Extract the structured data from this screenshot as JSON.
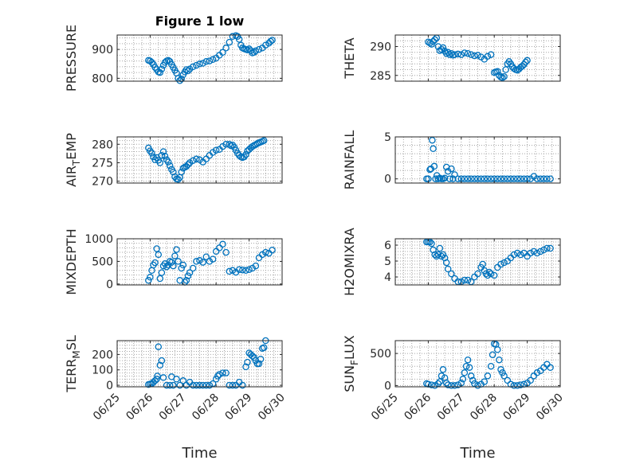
{
  "colors": {
    "marker": "#0072bd",
    "axis": "#262626",
    "grid": "#a6a6a6"
  },
  "chart_data": [
    {
      "id": "pressure",
      "type": "scatter",
      "title": "Figure 1 low",
      "ylabel": "PRESSURE",
      "ylim": [
        790,
        950
      ],
      "yticks": [
        800,
        900
      ],
      "yticklabels": [
        "800",
        "900"
      ],
      "xlim": [
        0,
        5
      ],
      "grid": true,
      "x": [
        0.95,
        1.0,
        1.05,
        1.1,
        1.15,
        1.2,
        1.25,
        1.3,
        1.35,
        1.4,
        1.45,
        1.5,
        1.55,
        1.6,
        1.65,
        1.7,
        1.75,
        1.8,
        1.85,
        1.9,
        1.95,
        2.0,
        2.05,
        2.1,
        2.15,
        2.2,
        2.3,
        2.4,
        2.5,
        2.6,
        2.7,
        2.8,
        2.9,
        3.0,
        3.1,
        3.2,
        3.3,
        3.4,
        3.5,
        3.6,
        3.65,
        3.7,
        3.75,
        3.8,
        3.85,
        3.9,
        3.95,
        4.0,
        4.05,
        4.1,
        4.15,
        4.2,
        4.3,
        4.4,
        4.5,
        4.6,
        4.65,
        4.7
      ],
      "y": [
        862,
        860,
        855,
        848,
        838,
        830,
        822,
        820,
        832,
        845,
        855,
        860,
        862,
        858,
        848,
        838,
        828,
        818,
        800,
        792,
        798,
        812,
        822,
        830,
        826,
        832,
        840,
        845,
        850,
        852,
        858,
        860,
        865,
        870,
        880,
        890,
        905,
        925,
        945,
        948,
        945,
        935,
        915,
        905,
        902,
        900,
        898,
        902,
        896,
        888,
        890,
        895,
        900,
        905,
        915,
        922,
        928,
        932
      ]
    },
    {
      "id": "theta",
      "type": "scatter",
      "title": "",
      "ylabel": "THETA",
      "ylim": [
        284,
        292
      ],
      "yticks": [
        285,
        290
      ],
      "yticklabels": [
        "285",
        "290"
      ],
      "xlim": [
        0,
        5
      ],
      "grid": true,
      "x": [
        1.0,
        1.05,
        1.1,
        1.15,
        1.2,
        1.25,
        1.3,
        1.35,
        1.4,
        1.45,
        1.5,
        1.55,
        1.6,
        1.65,
        1.7,
        1.75,
        1.8,
        1.9,
        2.0,
        2.1,
        2.2,
        2.3,
        2.4,
        2.5,
        2.6,
        2.7,
        2.8,
        2.9,
        3.0,
        3.05,
        3.1,
        3.15,
        3.2,
        3.25,
        3.3,
        3.35,
        3.4,
        3.45,
        3.5,
        3.55,
        3.6,
        3.65,
        3.7,
        3.75,
        3.8,
        3.85,
        3.9,
        3.95,
        4.0
      ],
      "y": [
        290.8,
        290.6,
        290.4,
        290.9,
        291.2,
        291.5,
        290.0,
        289.3,
        289.5,
        289.8,
        289.2,
        288.8,
        289.0,
        288.6,
        288.8,
        288.5,
        288.6,
        288.7,
        288.6,
        288.9,
        288.8,
        288.6,
        288.4,
        288.5,
        288.2,
        287.8,
        288.3,
        288.6,
        285.5,
        285.6,
        285.7,
        285.0,
        284.7,
        284.6,
        284.8,
        286.0,
        287.0,
        287.4,
        287.0,
        286.5,
        286.2,
        286.0,
        285.9,
        286.1,
        286.4,
        286.6,
        286.9,
        287.3,
        287.6
      ]
    },
    {
      "id": "airtemp",
      "type": "scatter",
      "title": "",
      "ylabel": "AIR_TEMP",
      "ylim": [
        269.5,
        282
      ],
      "yticks": [
        270,
        275,
        280
      ],
      "yticklabels": [
        "270",
        "275",
        "280"
      ],
      "xlim": [
        0,
        5
      ],
      "grid": true,
      "x": [
        0.95,
        1.0,
        1.05,
        1.1,
        1.15,
        1.2,
        1.25,
        1.3,
        1.35,
        1.4,
        1.45,
        1.5,
        1.55,
        1.6,
        1.65,
        1.7,
        1.75,
        1.8,
        1.85,
        1.9,
        1.95,
        2.0,
        2.05,
        2.1,
        2.15,
        2.2,
        2.3,
        2.4,
        2.5,
        2.6,
        2.7,
        2.8,
        2.9,
        3.0,
        3.1,
        3.2,
        3.3,
        3.4,
        3.45,
        3.5,
        3.55,
        3.6,
        3.65,
        3.7,
        3.75,
        3.8,
        3.85,
        3.9,
        3.95,
        4.0,
        4.05,
        4.1,
        4.15,
        4.2,
        4.25,
        4.3,
        4.35,
        4.4,
        4.45
      ],
      "y": [
        279.0,
        278.2,
        277.6,
        276.6,
        275.8,
        276.4,
        275.7,
        275.0,
        277.0,
        278.0,
        276.8,
        275.8,
        275.2,
        274.2,
        273.2,
        272.5,
        271.2,
        270.6,
        270.5,
        271.0,
        272.5,
        273.5,
        273.8,
        274.0,
        274.5,
        275.0,
        275.6,
        276.0,
        275.8,
        275.2,
        276.0,
        277.0,
        277.8,
        278.4,
        278.6,
        279.4,
        280.0,
        280.0,
        279.6,
        279.8,
        279.2,
        278.4,
        277.6,
        277.0,
        276.6,
        276.4,
        276.6,
        277.2,
        278.2,
        278.6,
        279.0,
        279.4,
        279.7,
        279.9,
        280.2,
        280.4,
        280.6,
        280.8,
        281.0
      ]
    },
    {
      "id": "rainfall",
      "type": "scatter",
      "title": "",
      "ylabel": "RAINFALL",
      "ylim": [
        -0.5,
        5
      ],
      "yticks": [
        0,
        5
      ],
      "yticklabels": [
        "0",
        "5"
      ],
      "xlim": [
        0,
        5
      ],
      "grid": true,
      "x": [
        0.95,
        1.0,
        1.05,
        1.08,
        1.12,
        1.15,
        1.18,
        1.22,
        1.26,
        1.3,
        1.35,
        1.4,
        1.45,
        1.5,
        1.55,
        1.6,
        1.65,
        1.7,
        1.75,
        1.8,
        1.9,
        2.0,
        2.1,
        2.2,
        2.3,
        2.4,
        2.5,
        2.6,
        2.7,
        2.8,
        2.9,
        3.0,
        3.1,
        3.2,
        3.3,
        3.4,
        3.5,
        3.6,
        3.7,
        3.8,
        3.9,
        4.0,
        4.1,
        4.2,
        4.3,
        4.4,
        4.5,
        4.6,
        4.7
      ],
      "y": [
        0,
        0,
        1.1,
        1.2,
        4.6,
        3.6,
        1.5,
        0,
        0.4,
        0,
        0.1,
        0,
        0,
        0.1,
        1.4,
        0.9,
        0,
        1.2,
        0,
        0.5,
        0,
        0,
        0,
        0,
        0,
        0,
        0,
        0,
        0,
        0,
        0,
        0,
        0,
        0,
        0,
        0,
        0,
        0,
        0,
        0,
        0,
        0,
        0,
        0.3,
        0,
        0,
        0,
        0,
        0
      ]
    },
    {
      "id": "mixdepth",
      "type": "scatter",
      "title": "",
      "ylabel": "MIXDEPTH",
      "ylim": [
        -20,
        1000
      ],
      "yticks": [
        0,
        500,
        1000
      ],
      "yticklabels": [
        "0",
        "500",
        "1000"
      ],
      "xlim": [
        0,
        5
      ],
      "grid": true,
      "x": [
        0.95,
        1.0,
        1.05,
        1.1,
        1.15,
        1.2,
        1.25,
        1.3,
        1.35,
        1.4,
        1.45,
        1.5,
        1.55,
        1.6,
        1.65,
        1.7,
        1.75,
        1.8,
        1.85,
        1.9,
        1.95,
        2.0,
        2.05,
        2.1,
        2.15,
        2.2,
        2.3,
        2.4,
        2.5,
        2.6,
        2.7,
        2.8,
        2.9,
        3.0,
        3.1,
        3.2,
        3.3,
        3.4,
        3.5,
        3.6,
        3.7,
        3.8,
        3.9,
        4.0,
        4.1,
        4.2,
        4.3,
        4.4,
        4.5,
        4.6,
        4.7
      ],
      "y": [
        80,
        150,
        300,
        420,
        470,
        780,
        650,
        120,
        250,
        400,
        450,
        380,
        420,
        500,
        480,
        400,
        620,
        760,
        500,
        80,
        350,
        420,
        40,
        80,
        180,
        250,
        350,
        500,
        520,
        480,
        600,
        500,
        550,
        720,
        800,
        880,
        700,
        280,
        300,
        260,
        320,
        310,
        300,
        320,
        350,
        400,
        580,
        650,
        700,
        680,
        750
      ]
    },
    {
      "id": "h2omixra",
      "type": "scatter",
      "title": "",
      "ylabel": "H2OMIXRA",
      "ylim": [
        3.5,
        6.4
      ],
      "yticks": [
        4,
        5,
        6
      ],
      "yticklabels": [
        "4",
        "5",
        "6"
      ],
      "xlim": [
        0,
        5
      ],
      "grid": true,
      "x": [
        0.95,
        1.0,
        1.05,
        1.1,
        1.15,
        1.2,
        1.25,
        1.3,
        1.35,
        1.4,
        1.45,
        1.5,
        1.55,
        1.6,
        1.7,
        1.8,
        1.9,
        2.0,
        2.1,
        2.2,
        2.3,
        2.4,
        2.5,
        2.6,
        2.65,
        2.7,
        2.75,
        2.8,
        2.85,
        2.9,
        3.0,
        3.1,
        3.2,
        3.3,
        3.4,
        3.5,
        3.6,
        3.7,
        3.8,
        3.9,
        4.0,
        4.1,
        4.2,
        4.3,
        4.4,
        4.5,
        4.6,
        4.7
      ],
      "y": [
        6.2,
        6.2,
        6.2,
        6.1,
        5.7,
        5.4,
        5.3,
        5.4,
        5.8,
        5.3,
        5.4,
        5.2,
        4.9,
        4.5,
        4.2,
        3.9,
        3.7,
        3.7,
        3.8,
        3.8,
        3.7,
        4.0,
        4.2,
        4.6,
        4.8,
        4.4,
        4.2,
        4.1,
        4.3,
        4.2,
        4.1,
        4.6,
        4.8,
        4.9,
        5.0,
        5.2,
        5.4,
        5.5,
        5.4,
        5.5,
        5.3,
        5.5,
        5.6,
        5.5,
        5.6,
        5.7,
        5.8,
        5.8
      ]
    },
    {
      "id": "terrmsl",
      "type": "scatter",
      "title": "",
      "ylabel": "TERR_MSL",
      "ylim": [
        -10,
        290
      ],
      "yticks": [
        0,
        100,
        200
      ],
      "yticklabels": [
        "0",
        "100",
        "200"
      ],
      "xlim": [
        0,
        5
      ],
      "grid": true,
      "x": [
        0.95,
        1.0,
        1.05,
        1.1,
        1.15,
        1.2,
        1.22,
        1.25,
        1.3,
        1.35,
        1.4,
        1.5,
        1.6,
        1.65,
        1.7,
        1.8,
        1.9,
        2.0,
        2.1,
        2.2,
        2.3,
        2.4,
        2.5,
        2.6,
        2.7,
        2.8,
        2.9,
        3.0,
        3.05,
        3.1,
        3.2,
        3.3,
        3.4,
        3.5,
        3.6,
        3.7,
        3.8,
        3.9,
        3.95,
        4.0,
        4.05,
        4.1,
        4.15,
        4.2,
        4.25,
        4.3,
        4.35,
        4.4,
        4.45,
        4.5
      ],
      "y": [
        5,
        8,
        10,
        20,
        30,
        40,
        60,
        250,
        130,
        160,
        50,
        0,
        0,
        55,
        0,
        40,
        0,
        30,
        0,
        20,
        0,
        0,
        0,
        0,
        0,
        0,
        10,
        40,
        60,
        70,
        80,
        80,
        0,
        0,
        0,
        20,
        0,
        120,
        150,
        210,
        200,
        190,
        180,
        160,
        140,
        140,
        170,
        240,
        245,
        290
      ]
    },
    {
      "id": "sunflux",
      "type": "scatter",
      "title": "",
      "ylabel": "SUN_FLUX",
      "ylim": [
        -20,
        700
      ],
      "yticks": [
        0,
        500
      ],
      "yticklabels": [
        "0",
        "500"
      ],
      "xlim": [
        0,
        5
      ],
      "grid": true,
      "x": [
        0.95,
        1.0,
        1.1,
        1.2,
        1.3,
        1.35,
        1.4,
        1.45,
        1.5,
        1.55,
        1.6,
        1.7,
        1.8,
        1.9,
        2.0,
        2.05,
        2.1,
        2.15,
        2.2,
        2.25,
        2.3,
        2.35,
        2.4,
        2.5,
        2.6,
        2.7,
        2.8,
        2.9,
        2.95,
        3.0,
        3.05,
        3.1,
        3.15,
        3.2,
        3.25,
        3.3,
        3.4,
        3.5,
        3.6,
        3.7,
        3.8,
        3.9,
        4.0,
        4.1,
        4.2,
        4.3,
        4.4,
        4.5,
        4.6,
        4.7
      ],
      "y": [
        30,
        20,
        10,
        0,
        30,
        60,
        150,
        250,
        120,
        40,
        10,
        0,
        0,
        10,
        40,
        100,
        200,
        300,
        400,
        280,
        150,
        80,
        30,
        0,
        20,
        60,
        150,
        300,
        480,
        650,
        640,
        560,
        400,
        250,
        200,
        150,
        80,
        20,
        0,
        0,
        10,
        20,
        40,
        80,
        150,
        200,
        230,
        280,
        330,
        280
      ]
    }
  ],
  "xaxis": {
    "ticklabels": [
      "06/25",
      "06/26",
      "06/27",
      "06/28",
      "06/29",
      "06/30"
    ],
    "label_left": "Time",
    "label_right": "Time"
  }
}
